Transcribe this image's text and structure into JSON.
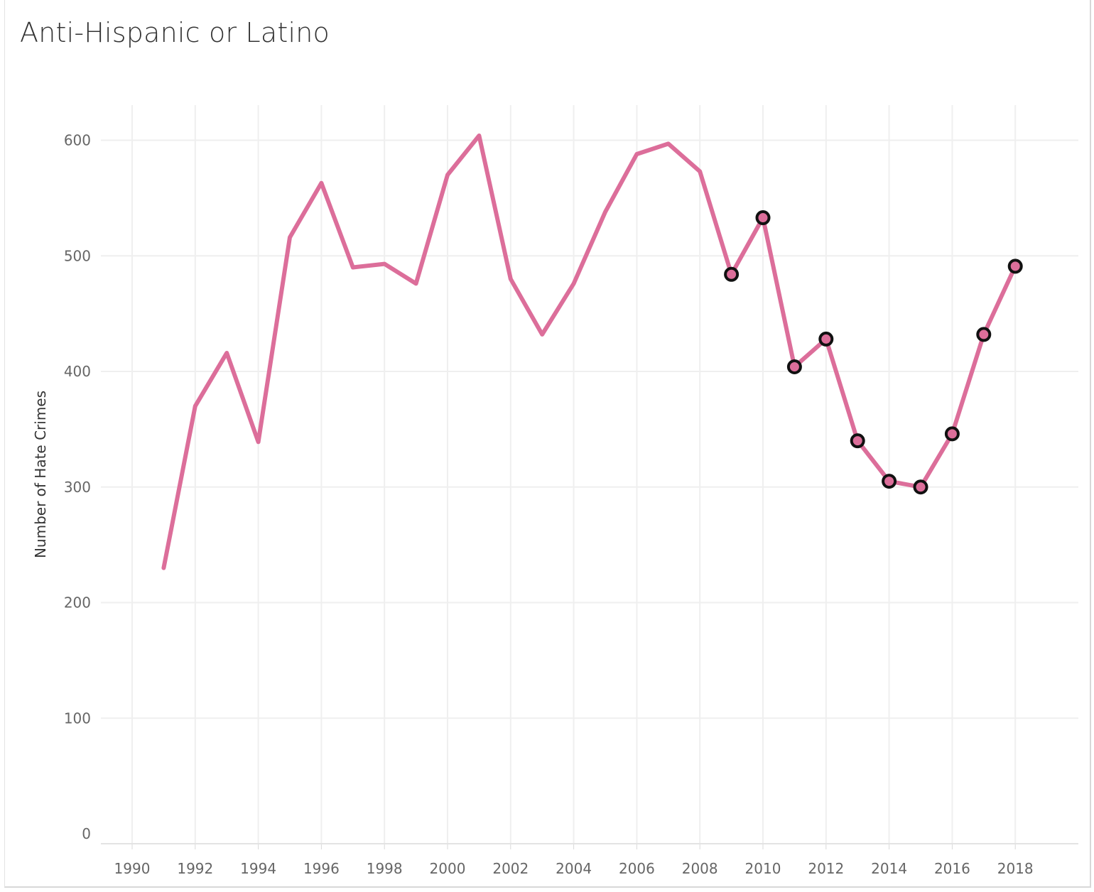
{
  "title": "Anti-Hispanic or Latino",
  "chart_data": {
    "type": "line",
    "title": "Anti-Hispanic or Latino",
    "xlabel": "",
    "ylabel": "Number of Hate Crimes",
    "x": [
      1991,
      1992,
      1993,
      1994,
      1995,
      1996,
      1997,
      1998,
      1999,
      2000,
      2001,
      2002,
      2003,
      2004,
      2005,
      2006,
      2007,
      2008,
      2009,
      2010,
      2011,
      2012,
      2013,
      2014,
      2015,
      2016,
      2017,
      2018
    ],
    "series": [
      {
        "values": [
          230,
          370,
          416,
          339,
          516,
          563,
          490,
          493,
          476,
          570,
          604,
          480,
          432,
          476,
          538,
          588,
          597,
          573,
          484,
          533,
          404,
          428,
          340,
          305,
          300,
          346,
          432,
          491
        ]
      }
    ],
    "marker_from_year": 2009,
    "xlim": [
      1989,
      2019.9
    ],
    "ylim": [
      0,
      640
    ],
    "x_ticks": [
      1990,
      1992,
      1994,
      1996,
      1998,
      2000,
      2002,
      2004,
      2006,
      2008,
      2010,
      2012,
      2014,
      2016,
      2018
    ],
    "y_ticks": [
      0,
      100,
      200,
      300,
      400,
      500,
      600
    ],
    "grid": true,
    "legend": "none",
    "colors": {
      "line": "#dc6e9a",
      "marker_fill": "#dc6e9a",
      "marker_stroke": "#111111",
      "grid": "#efefef",
      "tick_text": "#666666"
    }
  }
}
